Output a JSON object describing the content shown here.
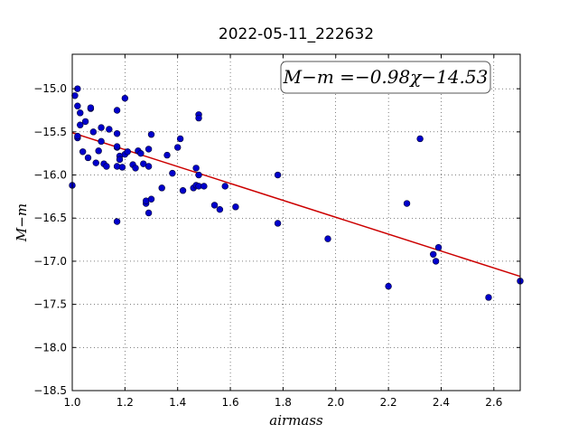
{
  "chart_data": {
    "type": "scatter",
    "title": "2022-05-11_222632",
    "xlabel": "airmass",
    "ylabel": "M−m",
    "xlim": [
      1.0,
      2.7
    ],
    "ylim": [
      -18.5,
      -14.6
    ],
    "y_inverted": false,
    "grid": true,
    "grid_style": "dotted",
    "xticks": [
      1.0,
      1.2,
      1.4,
      1.6,
      1.8,
      2.0,
      2.2,
      2.4,
      2.6
    ],
    "xtick_labels": [
      "1.0",
      "1.2",
      "1.4",
      "1.6",
      "1.8",
      "2.0",
      "2.2",
      "2.4",
      "2.6"
    ],
    "yticks": [
      -15.0,
      -15.5,
      -16.0,
      -16.5,
      -17.0,
      -17.5,
      -18.0,
      -18.5
    ],
    "ytick_labels": [
      "−15.0",
      "−15.5",
      "−16.0",
      "−16.5",
      "−17.0",
      "−17.5",
      "−18.0",
      "−18.5"
    ],
    "annotation": "M−m =−0.98χ−14.53",
    "annotation_placement": "top-right",
    "colors": {
      "points": "#0000cc",
      "fit_line": "#cc0000"
    },
    "fit_line": {
      "slope": -0.98,
      "intercept": -14.53,
      "x_range": [
        1.0,
        2.7
      ]
    },
    "series": [
      {
        "x": [
          1.0,
          1.01,
          1.02,
          1.02,
          1.03,
          1.02,
          1.03,
          1.02,
          1.04,
          1.05,
          1.06,
          1.07,
          1.08,
          1.07,
          1.09,
          1.1,
          1.11,
          1.11,
          1.12,
          1.13,
          1.14,
          1.17,
          1.17,
          1.18,
          1.2,
          1.17,
          1.18,
          1.17,
          1.17,
          1.19,
          1.2,
          1.21,
          1.23,
          1.24,
          1.25,
          1.26,
          1.27,
          1.28,
          1.29,
          1.3,
          1.29,
          1.28,
          1.29,
          1.3,
          1.34,
          1.36,
          1.38,
          1.4,
          1.41,
          1.42,
          1.46,
          1.47,
          1.48,
          1.48,
          1.48,
          1.47,
          1.48,
          1.5,
          1.54,
          1.56,
          1.58,
          1.62,
          1.78,
          1.78,
          1.97,
          2.2,
          2.27,
          2.32,
          2.37,
          2.38,
          2.39,
          2.58,
          2.7,
          1.17
        ],
        "y": [
          -16.12,
          -15.08,
          -15.2,
          -15.0,
          -15.28,
          -15.57,
          -15.42,
          -15.55,
          -15.73,
          -15.38,
          -15.8,
          -15.23,
          -15.5,
          -15.22,
          -15.86,
          -15.72,
          -15.61,
          -15.45,
          -15.87,
          -15.9,
          -15.47,
          -15.52,
          -15.25,
          -15.78,
          -15.11,
          -15.68,
          -15.82,
          -15.9,
          -16.54,
          -15.91,
          -15.76,
          -15.73,
          -15.88,
          -15.92,
          -15.72,
          -15.75,
          -15.87,
          -16.33,
          -15.9,
          -15.53,
          -15.7,
          -16.3,
          -16.44,
          -16.28,
          -16.15,
          -15.77,
          -15.98,
          -15.68,
          -15.58,
          -16.18,
          -16.15,
          -15.92,
          -15.3,
          -15.34,
          -16.0,
          -16.12,
          -16.13,
          -16.13,
          -16.35,
          -16.4,
          -16.13,
          -16.37,
          -16.0,
          -16.56,
          -16.74,
          -17.29,
          -16.33,
          -15.58,
          -16.92,
          -17.0,
          -16.84,
          -17.42,
          -17.23,
          -15.67
        ]
      }
    ]
  }
}
